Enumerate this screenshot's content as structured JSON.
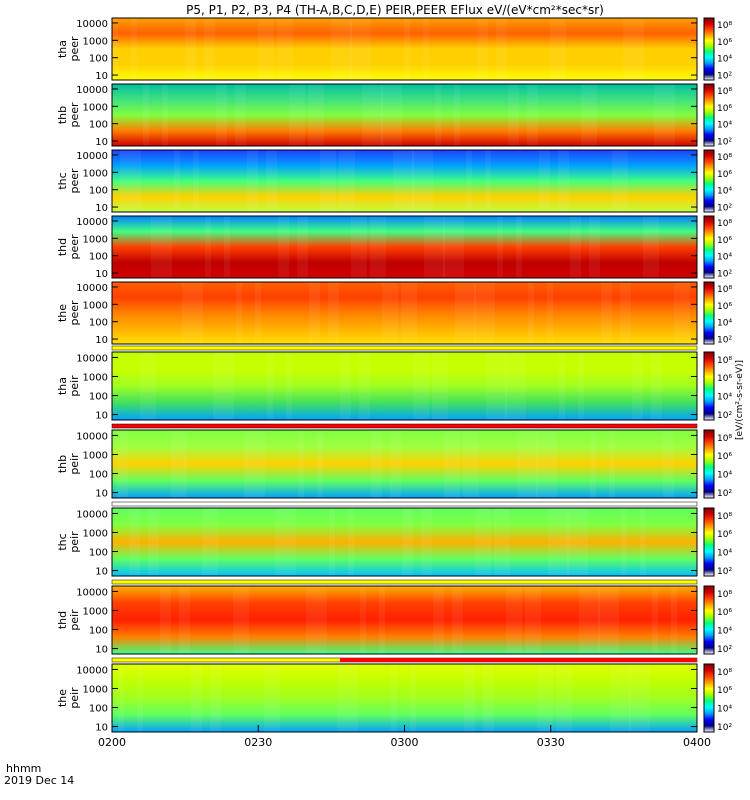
{
  "title": "P5, P1, P2, P3, P4 (TH-A,B,C,D,E) PEIR,PEER EFlux eV/(eV*cm²*sec*sr)",
  "x_axis": {
    "label_line1": "hhmm",
    "label_line2": "2019 Dec 14",
    "ticks": [
      "0200",
      "0230",
      "0300",
      "0330",
      "0400"
    ]
  },
  "y_tick_labels": [
    "10000",
    "1000",
    "100",
    "10"
  ],
  "colorbar": {
    "ticks": [
      "10⁸",
      "10⁶",
      "10⁴",
      "10²"
    ],
    "unit": "[eV/(cm²-s-sr-eV)]",
    "colors": [
      "#ffffff",
      "#000080",
      "#0000ff",
      "#00a0ff",
      "#00ffff",
      "#00ff80",
      "#a0ff00",
      "#ffff00",
      "#ffa000",
      "#ff4000",
      "#d00000",
      "#800000"
    ]
  },
  "chart_data": {
    "type": "heatmap",
    "x_range": [
      "0200",
      "0400"
    ],
    "y_scale": "log",
    "ylim": [
      10,
      10000
    ],
    "color_scale": "log",
    "panels": [
      {
        "name": "tha peer",
        "line1": "tha",
        "line2": "peer"
      },
      {
        "name": "thb peer",
        "line1": "thb",
        "line2": "peer"
      },
      {
        "name": "thc peer",
        "line1": "thc",
        "line2": "peer"
      },
      {
        "name": "thd peer",
        "line1": "thd",
        "line2": "peer"
      },
      {
        "name": "the peer",
        "line1": "the",
        "line2": "peer"
      },
      {
        "name": "tha peir",
        "line1": "tha",
        "line2": "peir"
      },
      {
        "name": "thb peir",
        "line1": "thb",
        "line2": "peir"
      },
      {
        "name": "thc peir",
        "line1": "thc",
        "line2": "peir"
      },
      {
        "name": "thd peir",
        "line1": "thd",
        "line2": "peir"
      },
      {
        "name": "the peir",
        "line1": "the",
        "line2": "peir"
      }
    ]
  }
}
